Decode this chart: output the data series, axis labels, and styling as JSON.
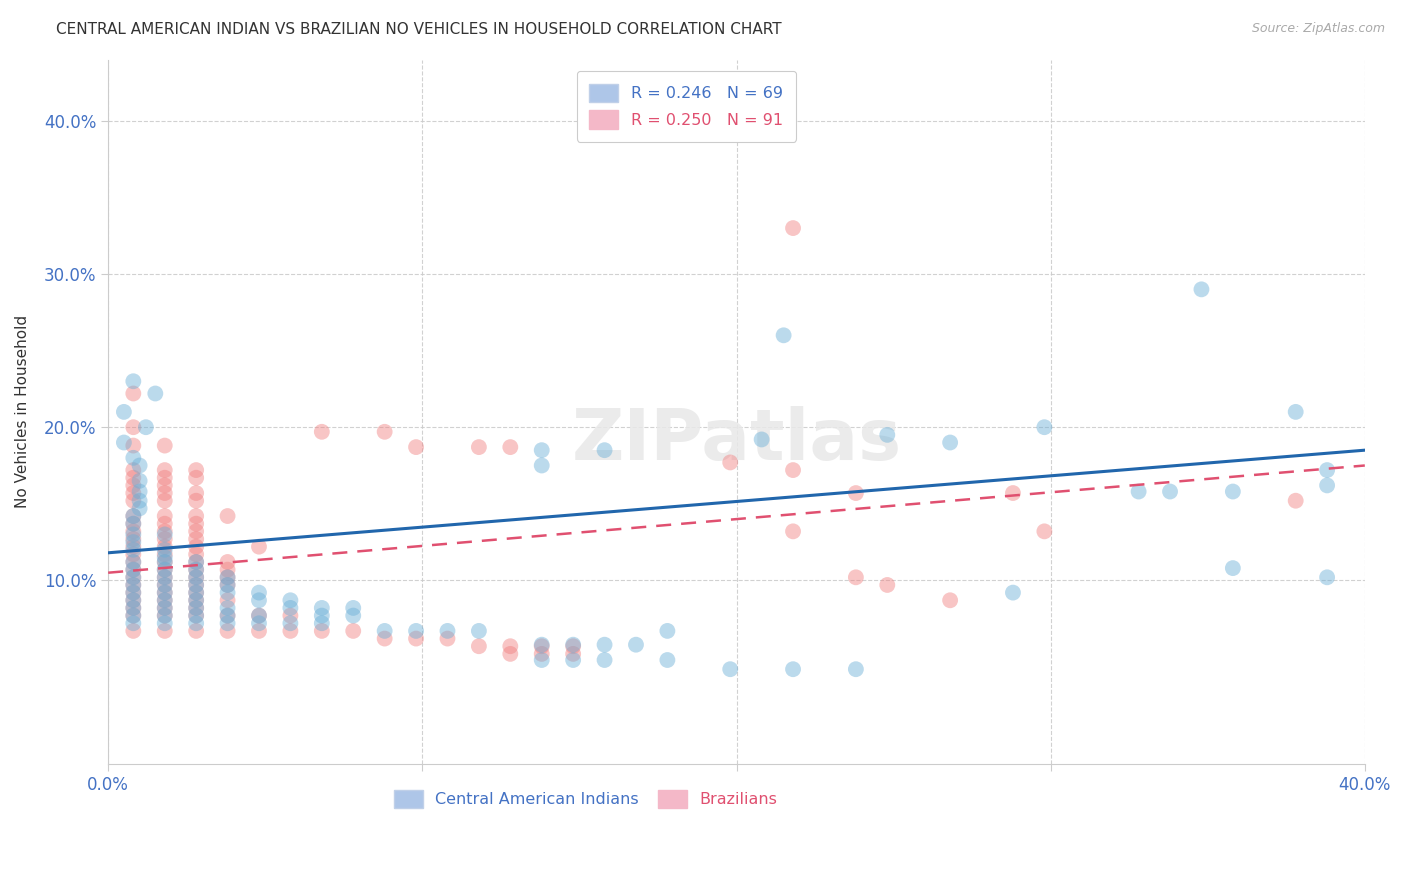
{
  "title": "CENTRAL AMERICAN INDIAN VS BRAZILIAN NO VEHICLES IN HOUSEHOLD CORRELATION CHART",
  "source": "Source: ZipAtlas.com",
  "ylabel": "No Vehicles in Household",
  "xlabel": "",
  "xlim": [
    0.0,
    0.4
  ],
  "ylim": [
    -0.02,
    0.44
  ],
  "xticks": [
    0.0,
    0.1,
    0.2,
    0.3,
    0.4
  ],
  "yticks": [
    0.1,
    0.2,
    0.3,
    0.4
  ],
  "xticklabels": [
    "0.0%",
    "",
    "",
    "",
    "40.0%"
  ],
  "yticklabels": [
    "10.0%",
    "20.0%",
    "30.0%",
    "40.0%"
  ],
  "blue_color": "#6aaed6",
  "pink_color": "#f08080",
  "blue_line_color": "#2166ac",
  "pink_line_color": "#e05070",
  "background_color": "#ffffff",
  "grid_color": "#cccccc",
  "blue_scatter": [
    [
      0.008,
      0.23
    ],
    [
      0.015,
      0.222
    ],
    [
      0.005,
      0.21
    ],
    [
      0.012,
      0.2
    ],
    [
      0.005,
      0.19
    ],
    [
      0.008,
      0.18
    ],
    [
      0.01,
      0.175
    ],
    [
      0.01,
      0.165
    ],
    [
      0.01,
      0.158
    ],
    [
      0.01,
      0.152
    ],
    [
      0.01,
      0.147
    ],
    [
      0.008,
      0.142
    ],
    [
      0.008,
      0.137
    ],
    [
      0.008,
      0.13
    ],
    [
      0.018,
      0.13
    ],
    [
      0.008,
      0.125
    ],
    [
      0.008,
      0.12
    ],
    [
      0.018,
      0.12
    ],
    [
      0.018,
      0.115
    ],
    [
      0.008,
      0.112
    ],
    [
      0.018,
      0.112
    ],
    [
      0.028,
      0.112
    ],
    [
      0.008,
      0.107
    ],
    [
      0.018,
      0.107
    ],
    [
      0.028,
      0.107
    ],
    [
      0.008,
      0.102
    ],
    [
      0.018,
      0.102
    ],
    [
      0.028,
      0.102
    ],
    [
      0.038,
      0.102
    ],
    [
      0.008,
      0.097
    ],
    [
      0.018,
      0.097
    ],
    [
      0.028,
      0.097
    ],
    [
      0.038,
      0.097
    ],
    [
      0.008,
      0.092
    ],
    [
      0.018,
      0.092
    ],
    [
      0.028,
      0.092
    ],
    [
      0.038,
      0.092
    ],
    [
      0.048,
      0.092
    ],
    [
      0.008,
      0.087
    ],
    [
      0.018,
      0.087
    ],
    [
      0.028,
      0.087
    ],
    [
      0.048,
      0.087
    ],
    [
      0.058,
      0.087
    ],
    [
      0.008,
      0.082
    ],
    [
      0.018,
      0.082
    ],
    [
      0.028,
      0.082
    ],
    [
      0.038,
      0.082
    ],
    [
      0.058,
      0.082
    ],
    [
      0.068,
      0.082
    ],
    [
      0.078,
      0.082
    ],
    [
      0.008,
      0.077
    ],
    [
      0.018,
      0.077
    ],
    [
      0.028,
      0.077
    ],
    [
      0.038,
      0.077
    ],
    [
      0.048,
      0.077
    ],
    [
      0.068,
      0.077
    ],
    [
      0.078,
      0.077
    ],
    [
      0.008,
      0.072
    ],
    [
      0.018,
      0.072
    ],
    [
      0.028,
      0.072
    ],
    [
      0.038,
      0.072
    ],
    [
      0.048,
      0.072
    ],
    [
      0.058,
      0.072
    ],
    [
      0.068,
      0.072
    ],
    [
      0.088,
      0.067
    ],
    [
      0.098,
      0.067
    ],
    [
      0.108,
      0.067
    ],
    [
      0.118,
      0.067
    ],
    [
      0.178,
      0.067
    ],
    [
      0.215,
      0.26
    ],
    [
      0.248,
      0.195
    ],
    [
      0.268,
      0.19
    ],
    [
      0.298,
      0.2
    ],
    [
      0.348,
      0.29
    ],
    [
      0.378,
      0.21
    ],
    [
      0.388,
      0.172
    ],
    [
      0.388,
      0.162
    ],
    [
      0.328,
      0.158
    ],
    [
      0.338,
      0.158
    ],
    [
      0.358,
      0.158
    ],
    [
      0.288,
      0.092
    ],
    [
      0.358,
      0.108
    ],
    [
      0.388,
      0.102
    ],
    [
      0.208,
      0.192
    ],
    [
      0.138,
      0.185
    ],
    [
      0.158,
      0.185
    ],
    [
      0.138,
      0.175
    ],
    [
      0.138,
      0.058
    ],
    [
      0.148,
      0.058
    ],
    [
      0.158,
      0.058
    ],
    [
      0.168,
      0.058
    ],
    [
      0.138,
      0.048
    ],
    [
      0.148,
      0.048
    ],
    [
      0.158,
      0.048
    ],
    [
      0.178,
      0.048
    ],
    [
      0.198,
      0.042
    ],
    [
      0.218,
      0.042
    ],
    [
      0.238,
      0.042
    ]
  ],
  "pink_scatter": [
    [
      0.008,
      0.222
    ],
    [
      0.008,
      0.2
    ],
    [
      0.008,
      0.188
    ],
    [
      0.018,
      0.188
    ],
    [
      0.008,
      0.172
    ],
    [
      0.018,
      0.172
    ],
    [
      0.028,
      0.172
    ],
    [
      0.008,
      0.167
    ],
    [
      0.018,
      0.167
    ],
    [
      0.028,
      0.167
    ],
    [
      0.008,
      0.162
    ],
    [
      0.018,
      0.162
    ],
    [
      0.008,
      0.157
    ],
    [
      0.018,
      0.157
    ],
    [
      0.028,
      0.157
    ],
    [
      0.008,
      0.152
    ],
    [
      0.018,
      0.152
    ],
    [
      0.028,
      0.152
    ],
    [
      0.008,
      0.142
    ],
    [
      0.018,
      0.142
    ],
    [
      0.028,
      0.142
    ],
    [
      0.038,
      0.142
    ],
    [
      0.008,
      0.137
    ],
    [
      0.018,
      0.137
    ],
    [
      0.028,
      0.137
    ],
    [
      0.008,
      0.132
    ],
    [
      0.018,
      0.132
    ],
    [
      0.028,
      0.132
    ],
    [
      0.008,
      0.127
    ],
    [
      0.018,
      0.127
    ],
    [
      0.028,
      0.127
    ],
    [
      0.008,
      0.122
    ],
    [
      0.018,
      0.122
    ],
    [
      0.028,
      0.122
    ],
    [
      0.048,
      0.122
    ],
    [
      0.008,
      0.117
    ],
    [
      0.018,
      0.117
    ],
    [
      0.028,
      0.117
    ],
    [
      0.008,
      0.112
    ],
    [
      0.018,
      0.112
    ],
    [
      0.028,
      0.112
    ],
    [
      0.038,
      0.112
    ],
    [
      0.008,
      0.107
    ],
    [
      0.018,
      0.107
    ],
    [
      0.028,
      0.107
    ],
    [
      0.038,
      0.107
    ],
    [
      0.008,
      0.102
    ],
    [
      0.018,
      0.102
    ],
    [
      0.028,
      0.102
    ],
    [
      0.038,
      0.102
    ],
    [
      0.008,
      0.097
    ],
    [
      0.018,
      0.097
    ],
    [
      0.028,
      0.097
    ],
    [
      0.038,
      0.097
    ],
    [
      0.008,
      0.092
    ],
    [
      0.018,
      0.092
    ],
    [
      0.028,
      0.092
    ],
    [
      0.008,
      0.087
    ],
    [
      0.018,
      0.087
    ],
    [
      0.028,
      0.087
    ],
    [
      0.038,
      0.087
    ],
    [
      0.008,
      0.082
    ],
    [
      0.018,
      0.082
    ],
    [
      0.028,
      0.082
    ],
    [
      0.008,
      0.077
    ],
    [
      0.018,
      0.077
    ],
    [
      0.028,
      0.077
    ],
    [
      0.038,
      0.077
    ],
    [
      0.048,
      0.077
    ],
    [
      0.058,
      0.077
    ],
    [
      0.008,
      0.067
    ],
    [
      0.018,
      0.067
    ],
    [
      0.028,
      0.067
    ],
    [
      0.038,
      0.067
    ],
    [
      0.048,
      0.067
    ],
    [
      0.058,
      0.067
    ],
    [
      0.068,
      0.067
    ],
    [
      0.078,
      0.067
    ],
    [
      0.088,
      0.062
    ],
    [
      0.098,
      0.062
    ],
    [
      0.108,
      0.062
    ],
    [
      0.118,
      0.057
    ],
    [
      0.128,
      0.057
    ],
    [
      0.138,
      0.057
    ],
    [
      0.148,
      0.057
    ],
    [
      0.128,
      0.052
    ],
    [
      0.138,
      0.052
    ],
    [
      0.148,
      0.052
    ],
    [
      0.068,
      0.197
    ],
    [
      0.088,
      0.197
    ],
    [
      0.098,
      0.187
    ],
    [
      0.118,
      0.187
    ],
    [
      0.128,
      0.187
    ],
    [
      0.198,
      0.177
    ],
    [
      0.218,
      0.172
    ],
    [
      0.238,
      0.157
    ],
    [
      0.218,
      0.132
    ],
    [
      0.288,
      0.157
    ],
    [
      0.298,
      0.132
    ],
    [
      0.238,
      0.102
    ],
    [
      0.248,
      0.097
    ],
    [
      0.268,
      0.087
    ],
    [
      0.218,
      0.33
    ],
    [
      0.378,
      0.152
    ]
  ],
  "blue_line": {
    "x0": 0.0,
    "y0": 0.118,
    "x1": 0.4,
    "y1": 0.185
  },
  "pink_line": {
    "x0": 0.0,
    "y0": 0.105,
    "x1": 0.4,
    "y1": 0.175
  }
}
